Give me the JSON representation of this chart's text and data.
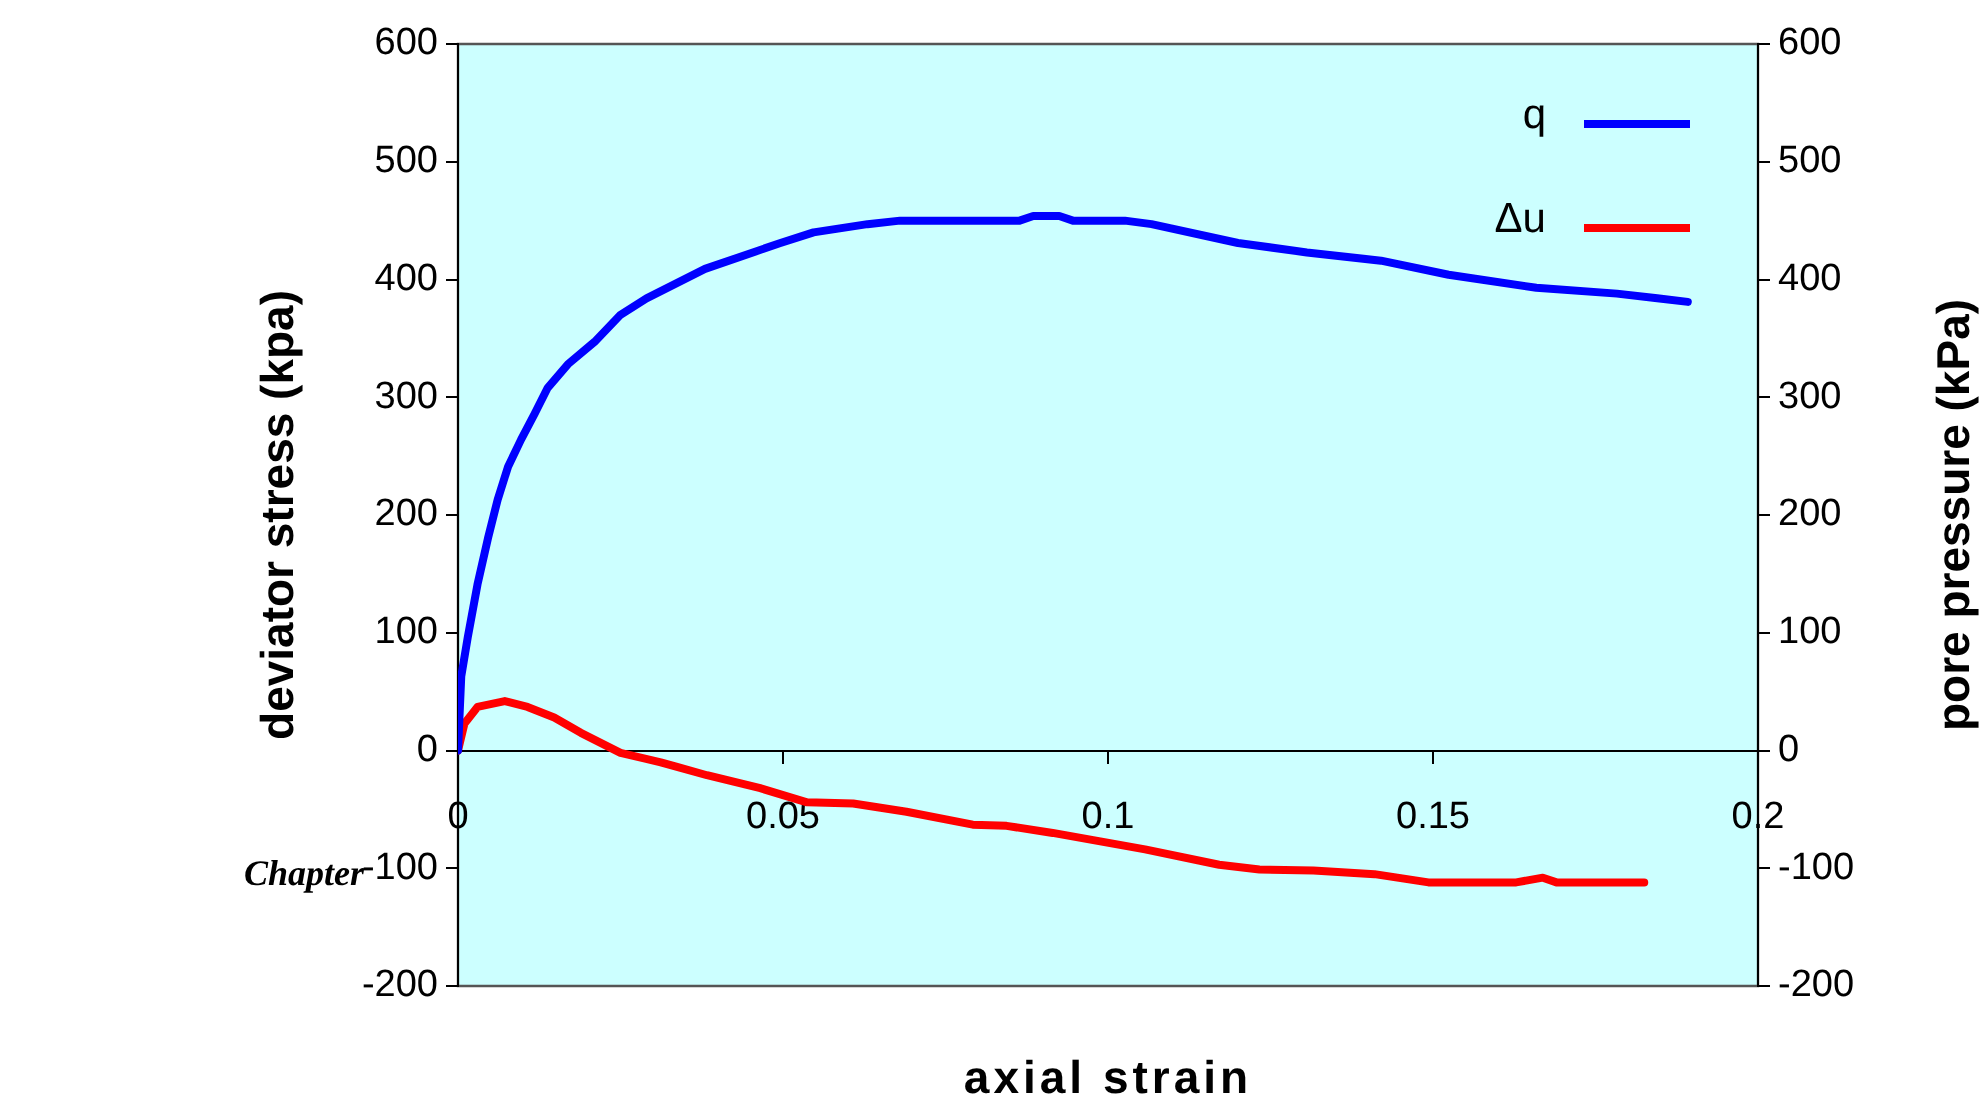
{
  "chart_data": {
    "type": "line",
    "xlabel": "axial strain",
    "ylabel": "deviator stress (kpa)",
    "y2label": "pore pressure (kPa)",
    "xlim": [
      0,
      0.2
    ],
    "xticks": [
      0,
      0.05,
      0.1,
      0.15,
      0.2
    ],
    "ylim": [
      -200,
      600
    ],
    "yticks": [
      -200,
      -100,
      0,
      100,
      200,
      300,
      400,
      500,
      600
    ],
    "y2lim": [
      -200,
      600
    ],
    "y2ticks": [
      -200,
      -100,
      0,
      100,
      200,
      300,
      400,
      500,
      600
    ],
    "grid": false,
    "legend": "top right",
    "marker": "none",
    "line_style": "solid",
    "annotations": [
      "Chapter"
    ],
    "series": [
      {
        "name": "q",
        "color": "#0000ff",
        "x": [
          0,
          0.0005,
          0.0015,
          0.003,
          0.0046,
          0.0061,
          0.0077,
          0.0097,
          0.0118,
          0.0138,
          0.0169,
          0.021,
          0.025,
          0.029,
          0.038,
          0.0496,
          0.0547,
          0.063,
          0.068,
          0.0864,
          0.0885,
          0.0925,
          0.0946,
          0.1026,
          0.1067,
          0.12,
          0.1306,
          0.142,
          0.1524,
          0.1659,
          0.1783,
          0.1845,
          0.1892
        ],
        "values": [
          0,
          63,
          96,
          141,
          180,
          213,
          241,
          264,
          286,
          308,
          328,
          347,
          370,
          384,
          409,
          431,
          440,
          447,
          450,
          450,
          454,
          454,
          450,
          450,
          447,
          431,
          423,
          416,
          404,
          393,
          388,
          384,
          381
        ]
      },
      {
        "name": "Δu",
        "color": "#ff0000",
        "x": [
          0,
          0.001,
          0.003,
          0.0072,
          0.0107,
          0.0148,
          0.0189,
          0.025,
          0.0312,
          0.0383,
          0.0465,
          0.0537,
          0.0608,
          0.069,
          0.0792,
          0.0844,
          0.0915,
          0.0986,
          0.1057,
          0.1171,
          0.1233,
          0.1316,
          0.141,
          0.1493,
          0.1628,
          0.1669,
          0.169,
          0.1825
        ],
        "values": [
          0,
          23,
          37,
          42,
          37,
          28,
          15,
          -2,
          -10,
          -21,
          -32,
          -44,
          -45,
          -52,
          -63,
          -64,
          -70,
          -77,
          -84,
          -97,
          -101,
          -102,
          -105,
          -112,
          -112,
          -108,
          -112,
          -112
        ]
      }
    ]
  }
}
